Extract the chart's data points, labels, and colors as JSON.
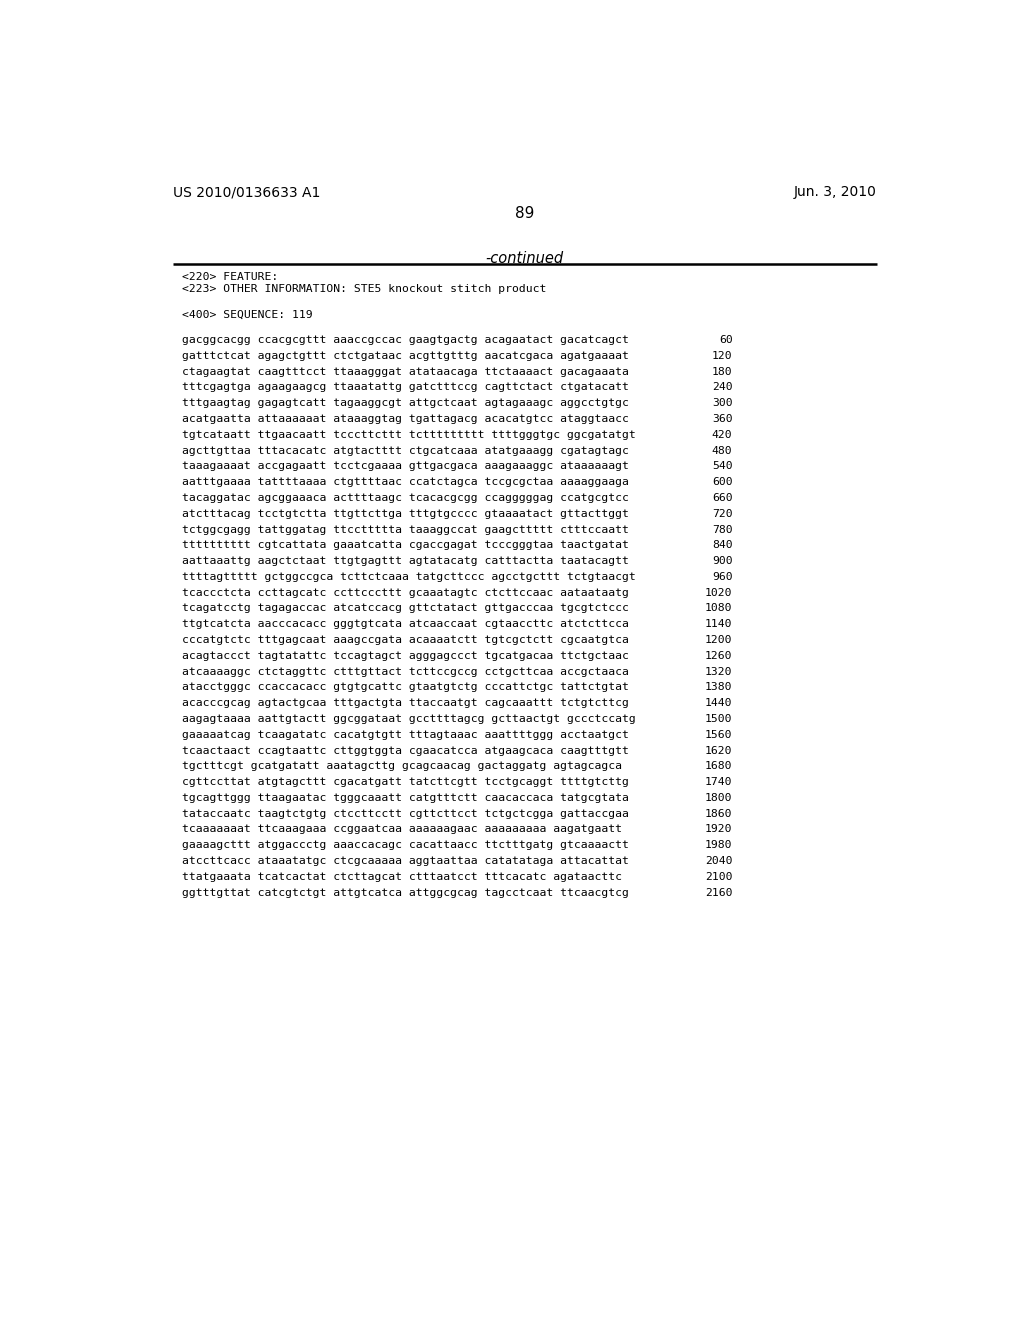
{
  "header_left": "US 2010/0136633 A1",
  "header_right": "Jun. 3, 2010",
  "page_number": "89",
  "continued_label": "-continued",
  "feature_lines": [
    "<220> FEATURE:",
    "<223> OTHER INFORMATION: STE5 knockout stitch product",
    "",
    "<400> SEQUENCE: 119"
  ],
  "sequence_lines": [
    [
      "gacggcacgg ccacgcgttt aaaccgccac gaagtgactg acagaatact gacatcagct",
      "60"
    ],
    [
      "gatttctcat agagctgttt ctctgataac acgttgtttg aacatcgaca agatgaaaat",
      "120"
    ],
    [
      "ctagaagtat caagtttcct ttaaagggat atataacaga ttctaaaact gacagaaata",
      "180"
    ],
    [
      "tttcgagtga agaagaagcg ttaaatattg gatctttccg cagttctact ctgatacatt",
      "240"
    ],
    [
      "tttgaagtag gagagtcatt tagaaggcgt attgctcaat agtagaaagc aggcctgtgc",
      "300"
    ],
    [
      "acatgaatta attaaaaaat ataaaggtag tgattagacg acacatgtcc ataggtaacc",
      "360"
    ],
    [
      "tgtcataatt ttgaacaatt tcccttcttt tcttttttttt ttttgggtgc ggcgatatgt",
      "420"
    ],
    [
      "agcttgttaa tttacacatc atgtactttt ctgcatcaaa atatgaaagg cgatagtagc",
      "480"
    ],
    [
      "taaagaaaat accgagaatt tcctcgaaaa gttgacgaca aaagaaaggc ataaaaaagt",
      "540"
    ],
    [
      "aatttgaaaa tattttaaaa ctgttttaac ccatctagca tccgcgctaa aaaaggaaga",
      "600"
    ],
    [
      "tacaggatac agcggaaaca acttttaagc tcacacgcgg ccagggggag ccatgcgtcc",
      "660"
    ],
    [
      "atctttacag tcctgtctta ttgttcttga tttgtgcccc gtaaaatact gttacttggt",
      "720"
    ],
    [
      "tctggcgagg tattggatag ttccttttta taaaggccat gaagcttttt ctttccaatt",
      "780"
    ],
    [
      "tttttttttt cgtcattata gaaatcatta cgaccgagat tcccgggtaa taactgatat",
      "840"
    ],
    [
      "aattaaattg aagctctaat ttgtgagttt agtatacatg catttactta taatacagtt",
      "900"
    ],
    [
      "ttttagttttt gctggccgca tcttctcaaa tatgcttccc agcctgcttt tctgtaacgt",
      "960"
    ],
    [
      "tcaccctcta ccttagcatc ccttcccttt gcaaatagtc ctcttccaac aataataatg",
      "1020"
    ],
    [
      "tcagatcctg tagagaccac atcatccacg gttctatact gttgacccaa tgcgtctccc",
      "1080"
    ],
    [
      "ttgtcatcta aacccacacc gggtgtcata atcaaccaat cgtaaccttc atctcttcca",
      "1140"
    ],
    [
      "cccatgtctc tttgagcaat aaagccgata acaaaatctt tgtcgctctt cgcaatgtca",
      "1200"
    ],
    [
      "acagtaccct tagtatattc tccagtagct agggagccct tgcatgacaa ttctgctaac",
      "1260"
    ],
    [
      "atcaaaaggc ctctaggttc ctttgttact tcttccgccg cctgcttcaa accgctaaca",
      "1320"
    ],
    [
      "atacctgggc ccaccacacc gtgtgcattc gtaatgtctg cccattctgc tattctgtat",
      "1380"
    ],
    [
      "acacccgcag agtactgcaa tttgactgta ttaccaatgt cagcaaattt tctgtcttcg",
      "1440"
    ],
    [
      "aagagtaaaa aattgtactt ggcggataat gccttttagcg gcttaactgt gccctccatg",
      "1500"
    ],
    [
      "gaaaaatcag tcaagatatc cacatgtgtt tttagtaaac aaattttggg acctaatgct",
      "1560"
    ],
    [
      "tcaactaact ccagtaattc cttggtggta cgaacatcca atgaagcaca caagtttgtt",
      "1620"
    ],
    [
      "tgctttcgt gcatgatatt aaatagcttg gcagcaacag gactaggatg agtagcagca",
      "1680"
    ],
    [
      "cgttccttat atgtagcttt cgacatgatt tatcttcgtt tcctgcaggt ttttgtcttg",
      "1740"
    ],
    [
      "tgcagttggg ttaagaatac tgggcaaatt catgtttctt caacaccaca tatgcgtata",
      "1800"
    ],
    [
      "tataccaatc taagtctgtg ctccttcctt cgttcttcct tctgctcgga gattaccgaa",
      "1860"
    ],
    [
      "tcaaaaaaat ttcaaagaaa ccggaatcaa aaaaaagaac aaaaaaaaa aagatgaatt",
      "1920"
    ],
    [
      "gaaaagcttt atggaccctg aaaccacagc cacattaacc ttctttgatg gtcaaaactt",
      "1980"
    ],
    [
      "atccttcacc ataaatatgc ctcgcaaaaa aggtaattaa catatataga attacattat",
      "2040"
    ],
    [
      "ttatgaaata tcatcactat ctcttagcat ctttaatcct tttcacatc agataacttc",
      "2100"
    ],
    [
      "ggtttgttat catcgtctgt attgtcatca attggcgcag tagcctcaat ttcaacgtcg",
      "2160"
    ]
  ],
  "background_color": "#ffffff",
  "text_color": "#000000"
}
